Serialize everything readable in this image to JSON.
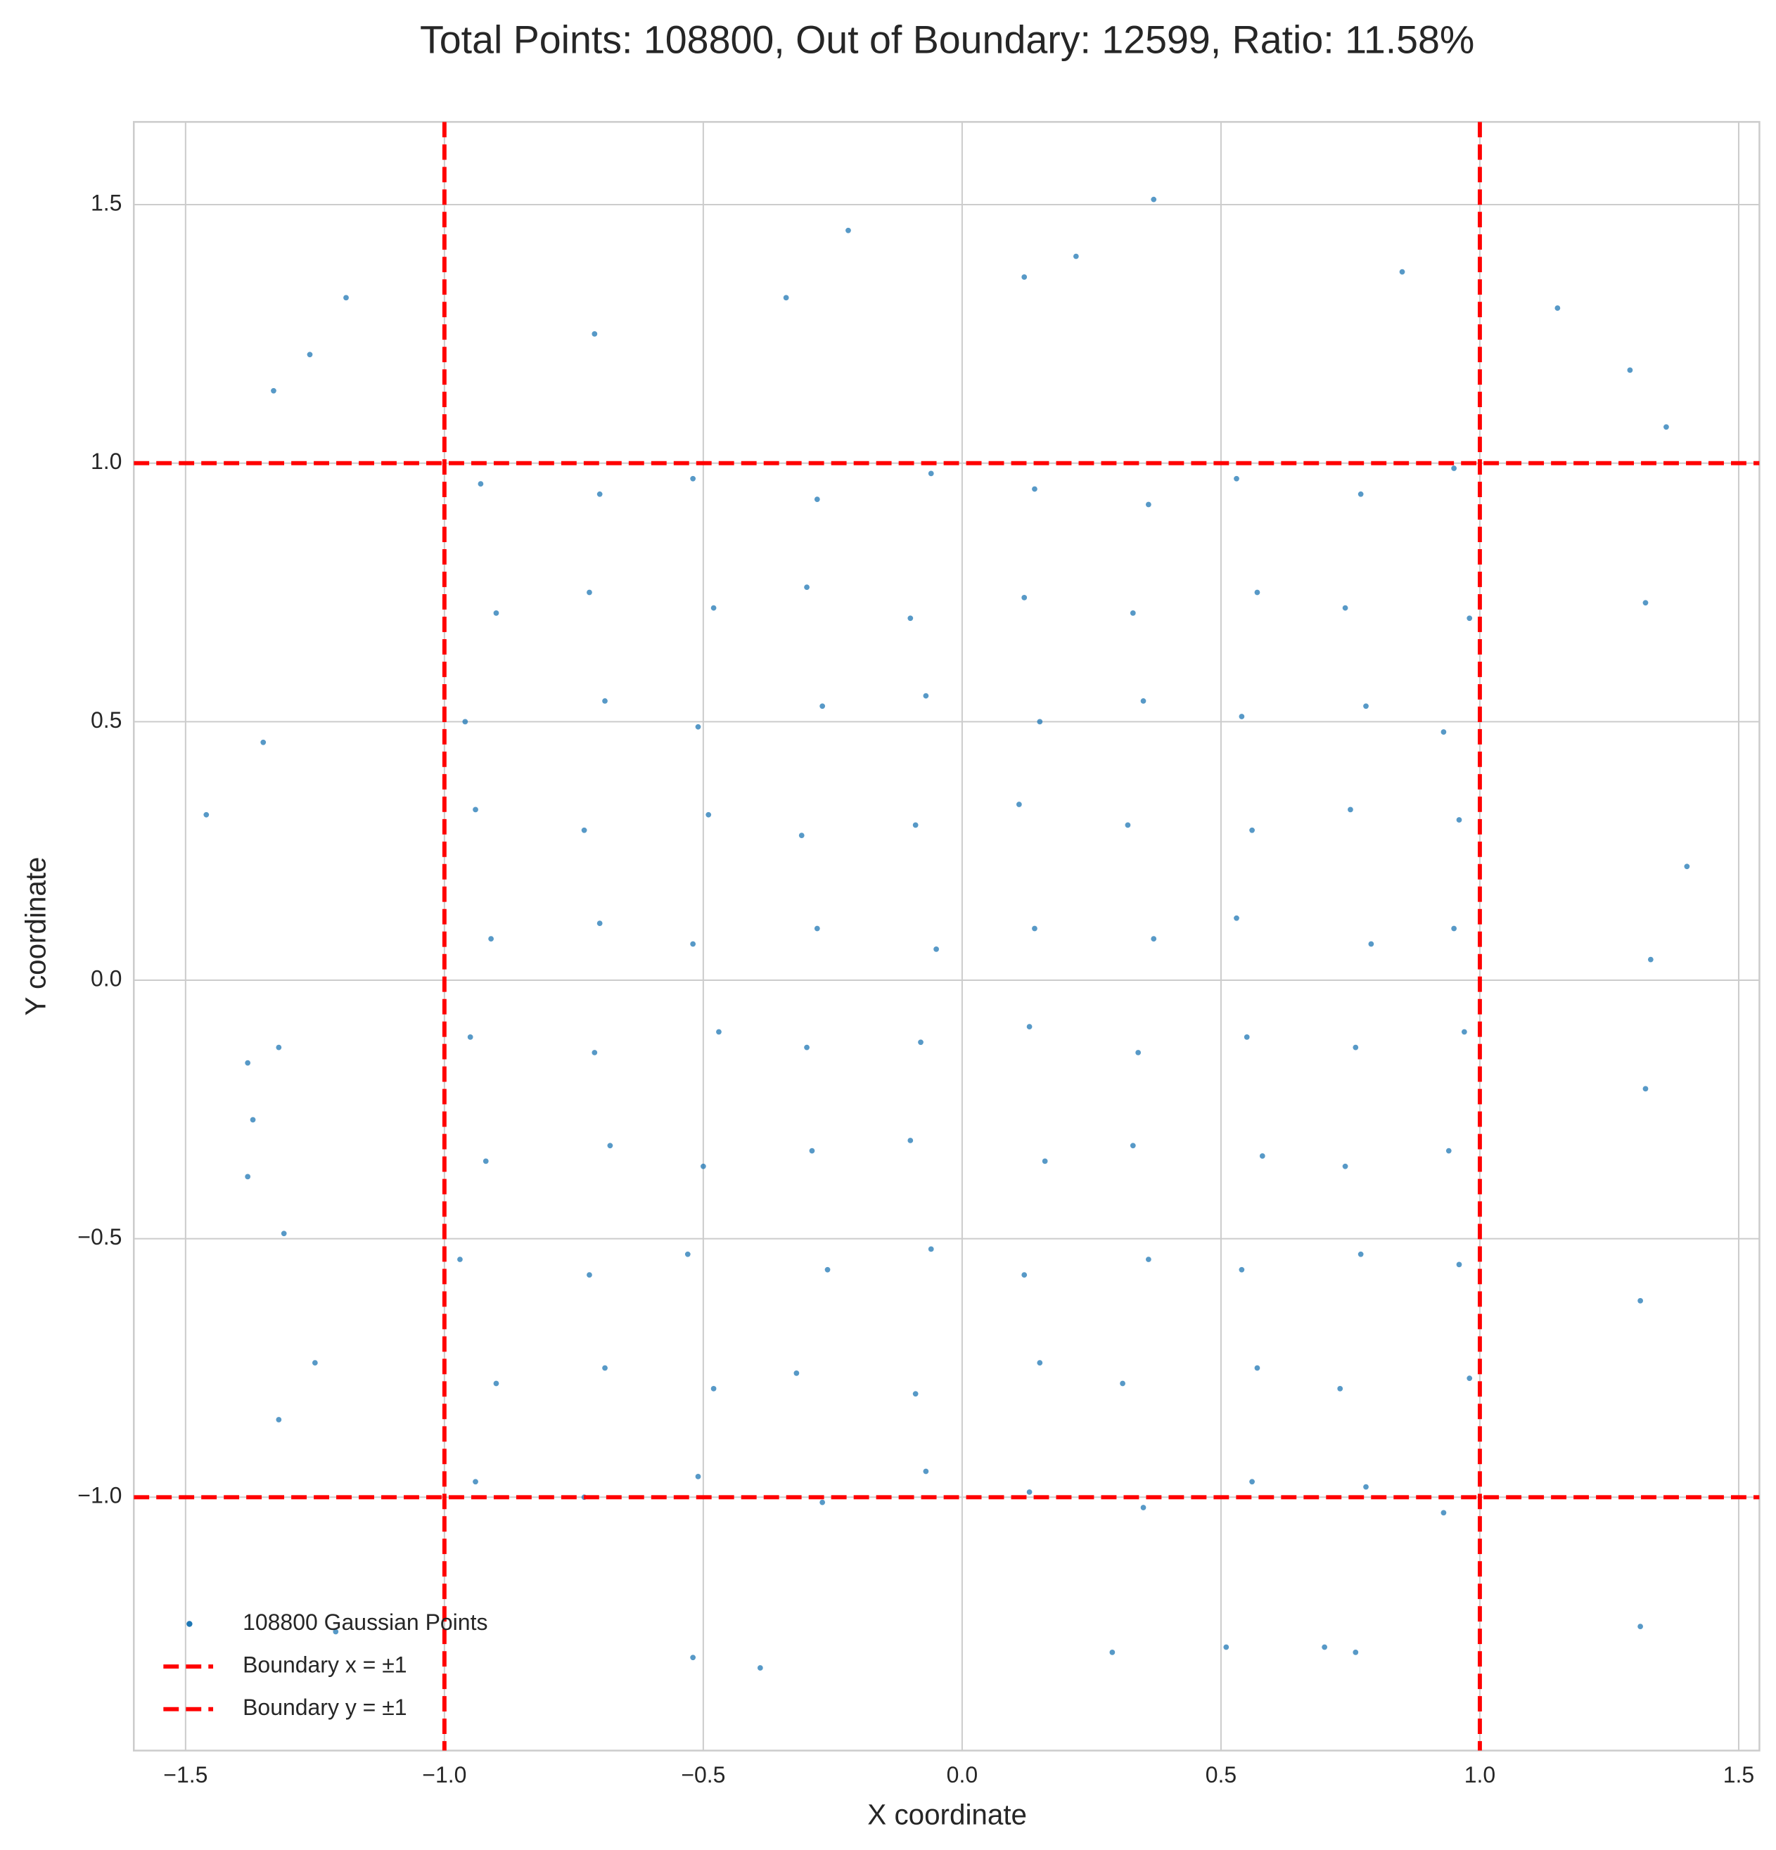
{
  "chart_data": {
    "type": "scatter",
    "title": "Total Points: 108800, Out of Boundary: 12599, Ratio: 11.58%",
    "xlabel": "X coordinate",
    "ylabel": "Y coordinate",
    "xlim": [
      -1.6,
      1.54
    ],
    "ylim": [
      -1.49,
      1.66
    ],
    "xticks": [
      {
        "value": -1.5,
        "label": "−1.5"
      },
      {
        "value": -1,
        "label": "−1.0"
      },
      {
        "value": -0.5,
        "label": "−0.5"
      },
      {
        "value": 0,
        "label": "0.0"
      },
      0.5,
      {
        "value": 1,
        "label": "1.0"
      },
      1.5
    ],
    "yticks": [
      {
        "value": -1,
        "label": "−1.0"
      },
      {
        "value": -0.5,
        "label": "−0.5"
      },
      {
        "value": 0,
        "label": "0.0"
      },
      0.5,
      {
        "value": 1,
        "label": "1.0"
      },
      1.5
    ],
    "grid": true,
    "legend": "lower left",
    "series": [
      {
        "name": "108800 Gaussian Points",
        "color": "#1f77b4",
        "x": [
          -1.46,
          -1.33,
          -1.35,
          -1.32,
          -1.38,
          -1.37,
          -1.38,
          -1.31,
          -1.32,
          -1.19,
          0.37,
          -0.22,
          0.22,
          0.85,
          0.12,
          1.4,
          1.33,
          1.32,
          1.31,
          1.31,
          -0.39,
          -0.52,
          0.29,
          0.76,
          1.32,
          1.36,
          1.29,
          -1.26,
          -1.25,
          -1.21,
          0.51,
          0.7,
          -0.71,
          -0.34,
          1.15,
          -0.93,
          -0.7,
          -0.52,
          -0.28,
          -0.06,
          0.14,
          0.36,
          0.53,
          0.77,
          0.95,
          -0.9,
          -0.72,
          -0.48,
          -0.3,
          -0.1,
          0.12,
          0.33,
          0.57,
          0.74,
          0.98,
          -0.96,
          -0.69,
          -0.51,
          -0.27,
          -0.07,
          0.15,
          0.35,
          0.54,
          0.78,
          0.93,
          -0.94,
          -0.73,
          -0.49,
          -0.31,
          -0.09,
          0.11,
          0.32,
          0.56,
          0.75,
          0.96,
          -0.91,
          -0.7,
          -0.52,
          -0.28,
          -0.05,
          0.14,
          0.37,
          0.53,
          0.79,
          0.95,
          -0.95,
          -0.71,
          -0.47,
          -0.3,
          -0.08,
          0.13,
          0.34,
          0.55,
          0.76,
          0.97,
          -0.92,
          -0.68,
          -0.5,
          -0.29,
          -0.1,
          0.16,
          0.33,
          0.58,
          0.74,
          0.94,
          -0.97,
          -0.72,
          -0.53,
          -0.26,
          -0.06,
          0.12,
          0.36,
          0.54,
          0.77,
          0.96,
          -0.9,
          -0.69,
          -0.48,
          -0.32,
          -0.09,
          0.15,
          0.31,
          0.57,
          0.73,
          0.98,
          -0.94,
          -0.73,
          -0.51,
          -0.27,
          -0.07,
          0.13,
          0.35,
          0.56,
          0.78,
          0.93
        ],
        "y": [
          0.32,
          1.14,
          0.46,
          -0.13,
          -0.16,
          -0.27,
          -0.38,
          -0.49,
          -0.85,
          1.32,
          1.51,
          1.45,
          1.4,
          1.37,
          1.36,
          0.22,
          0.04,
          -0.21,
          -0.62,
          -1.25,
          -1.33,
          -1.31,
          -1.3,
          -1.3,
          0.73,
          1.07,
          1.18,
          1.21,
          -0.74,
          -1.26,
          -1.29,
          -1.29,
          1.25,
          1.32,
          1.3,
          0.96,
          0.94,
          0.97,
          0.93,
          0.98,
          0.95,
          0.92,
          0.97,
          0.94,
          0.99,
          0.71,
          0.75,
          0.72,
          0.76,
          0.7,
          0.74,
          0.71,
          0.75,
          0.72,
          0.7,
          0.5,
          0.54,
          0.49,
          0.53,
          0.55,
          0.5,
          0.54,
          0.51,
          0.53,
          0.48,
          0.33,
          0.29,
          0.32,
          0.28,
          0.3,
          0.34,
          0.3,
          0.29,
          0.33,
          0.31,
          0.08,
          0.11,
          0.07,
          0.1,
          0.06,
          0.1,
          0.08,
          0.12,
          0.07,
          0.1,
          -0.11,
          -0.14,
          -0.1,
          -0.13,
          -0.12,
          -0.09,
          -0.14,
          -0.11,
          -0.13,
          -0.1,
          -0.35,
          -0.32,
          -0.36,
          -0.33,
          -0.31,
          -0.35,
          -0.32,
          -0.34,
          -0.36,
          -0.33,
          -0.54,
          -0.57,
          -0.53,
          -0.56,
          -0.52,
          -0.57,
          -0.54,
          -0.56,
          -0.53,
          -0.55,
          -0.78,
          -0.75,
          -0.79,
          -0.76,
          -0.8,
          -0.74,
          -0.78,
          -0.75,
          -0.79,
          -0.77,
          -0.97,
          -1.0,
          -0.96,
          -1.01,
          -0.95,
          -0.99,
          -1.02,
          -0.97,
          -0.98,
          -1.03
        ]
      }
    ],
    "boundaries": [
      {
        "name": "Boundary x = ±1",
        "axis": "x",
        "values": [
          -1,
          1
        ],
        "color": "#ff0000"
      },
      {
        "name": "Boundary y = ±1",
        "axis": "y",
        "values": [
          -1,
          1
        ],
        "color": "#ff0000"
      }
    ]
  }
}
